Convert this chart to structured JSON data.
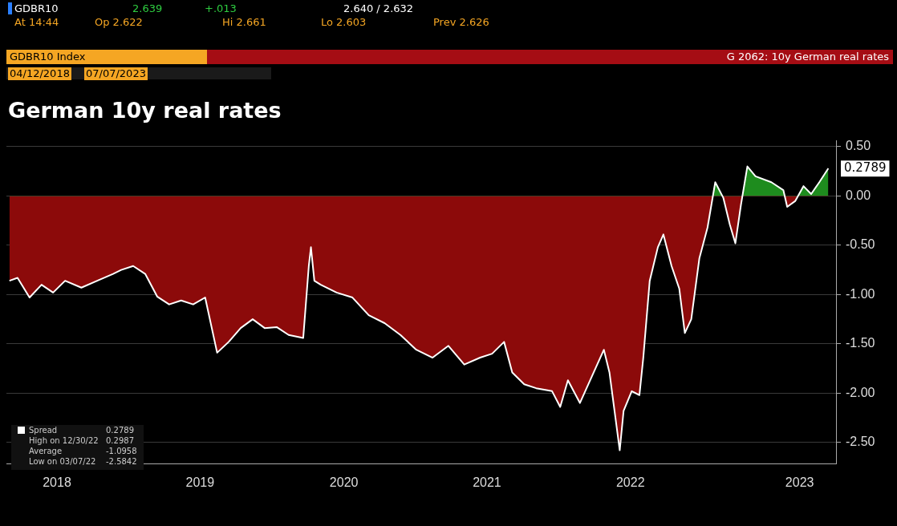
{
  "chart_data": {
    "type": "area",
    "title": "German 10y real rates",
    "x": [
      "2018-04-12",
      "2018-05-01",
      "2018-05-29",
      "2018-06-26",
      "2018-07-23",
      "2018-08-20",
      "2018-09-27",
      "2018-11-03",
      "2018-12-10",
      "2018-12-29",
      "2019-01-26",
      "2019-02-23",
      "2019-03-23",
      "2019-04-20",
      "2019-05-18",
      "2019-06-15",
      "2019-07-13",
      "2019-08-10",
      "2019-09-06",
      "2019-10-04",
      "2019-11-01",
      "2019-11-29",
      "2019-12-27",
      "2020-01-24",
      "2020-02-27",
      "2020-03-11",
      "2020-03-16",
      "2020-03-24",
      "2020-04-08",
      "2020-05-15",
      "2020-06-21",
      "2020-07-29",
      "2020-09-04",
      "2020-10-11",
      "2020-11-17",
      "2020-12-25",
      "2021-01-31",
      "2021-03-09",
      "2021-04-15",
      "2021-05-13",
      "2021-06-10",
      "2021-06-29",
      "2021-07-27",
      "2021-08-24",
      "2021-09-30",
      "2021-10-19",
      "2021-11-06",
      "2021-12-04",
      "2022-01-01",
      "2022-01-29",
      "2022-02-11",
      "2022-03-07",
      "2022-03-16",
      "2022-04-04",
      "2022-04-22",
      "2022-05-01",
      "2022-05-16",
      "2022-06-04",
      "2022-06-17",
      "2022-07-06",
      "2022-07-24",
      "2022-08-06",
      "2022-08-21",
      "2022-09-09",
      "2022-09-28",
      "2022-10-07",
      "2022-10-16",
      "2022-11-04",
      "2022-11-19",
      "2022-12-02",
      "2022-12-15",
      "2022-12-30",
      "2023-01-18",
      "2023-02-24",
      "2023-03-24",
      "2023-04-02",
      "2023-04-21",
      "2023-05-10",
      "2023-05-28",
      "2023-06-16",
      "2023-07-07"
    ],
    "series": [
      {
        "name": "Spread",
        "color": "#ffffff",
        "values": [
          -0.86,
          -0.83,
          -1.03,
          -0.9,
          -0.98,
          -0.86,
          -0.93,
          -0.86,
          -0.79,
          -0.75,
          -0.71,
          -0.79,
          -1.02,
          -1.1,
          -1.06,
          -1.1,
          -1.03,
          -1.59,
          -1.48,
          -1.34,
          -1.25,
          -1.34,
          -1.33,
          -1.41,
          -1.44,
          -0.71,
          -0.52,
          -0.86,
          -0.9,
          -0.98,
          -1.03,
          -1.21,
          -1.29,
          -1.41,
          -1.56,
          -1.64,
          -1.52,
          -1.71,
          -1.64,
          -1.6,
          -1.48,
          -1.79,
          -1.91,
          -1.95,
          -1.98,
          -2.14,
          -1.87,
          -2.1,
          -1.83,
          -1.56,
          -1.79,
          -2.58,
          -2.18,
          -1.98,
          -2.02,
          -1.64,
          -0.86,
          -0.52,
          -0.39,
          -0.71,
          -0.94,
          -1.39,
          -1.25,
          -0.63,
          -0.32,
          -0.09,
          0.14,
          -0.02,
          -0.29,
          -0.48,
          -0.09,
          0.3,
          0.2,
          0.14,
          0.06,
          -0.11,
          -0.05,
          0.1,
          0.02,
          0.14,
          0.28
        ]
      }
    ],
    "xlim": [
      "2018-04-05",
      "2023-07-25"
    ],
    "xticks": [
      {
        "value": "2018-08-01",
        "label": "2018"
      },
      {
        "value": "2019-07-01",
        "label": "2019"
      },
      {
        "value": "2020-06-01",
        "label": "2020"
      },
      {
        "value": "2021-05-01",
        "label": "2021"
      },
      {
        "value": "2022-04-01",
        "label": "2022"
      },
      {
        "value": "2023-05-01",
        "label": "2023"
      }
    ],
    "ylim": [
      -2.72,
      0.56
    ],
    "yticks": [
      {
        "value": 0.5,
        "label": "0.50"
      },
      {
        "value": 0,
        "label": "0.00"
      },
      {
        "value": -0.5,
        "label": "-0.50"
      },
      {
        "value": -1,
        "label": "-1.00"
      },
      {
        "value": -1.5,
        "label": "-1.50"
      },
      {
        "value": -2,
        "label": "-2.00"
      },
      {
        "value": -2.5,
        "label": "-2.50"
      }
    ],
    "grid": "y",
    "legend": "bottom left",
    "annotations": [
      "GDBR10",
      "2.639",
      "+.013",
      "2.640 / 2.632",
      "At 14:44",
      "Op 2.622",
      "Hi 2.661",
      "Lo 2.603",
      "Prev 2.626",
      "GDBR10 Index",
      "G 2062: 10y German real rates",
      "04/12/2018",
      "07/07/2023",
      "0.2789",
      "High on 12/30/22",
      "0.2987",
      "Average",
      "-1.0958",
      "Low on 03/07/22",
      "-2.5842",
      {
        "text": "0.2789",
        "x": "2023-07-07",
        "y": 0.2789
      }
    ]
  }
}
